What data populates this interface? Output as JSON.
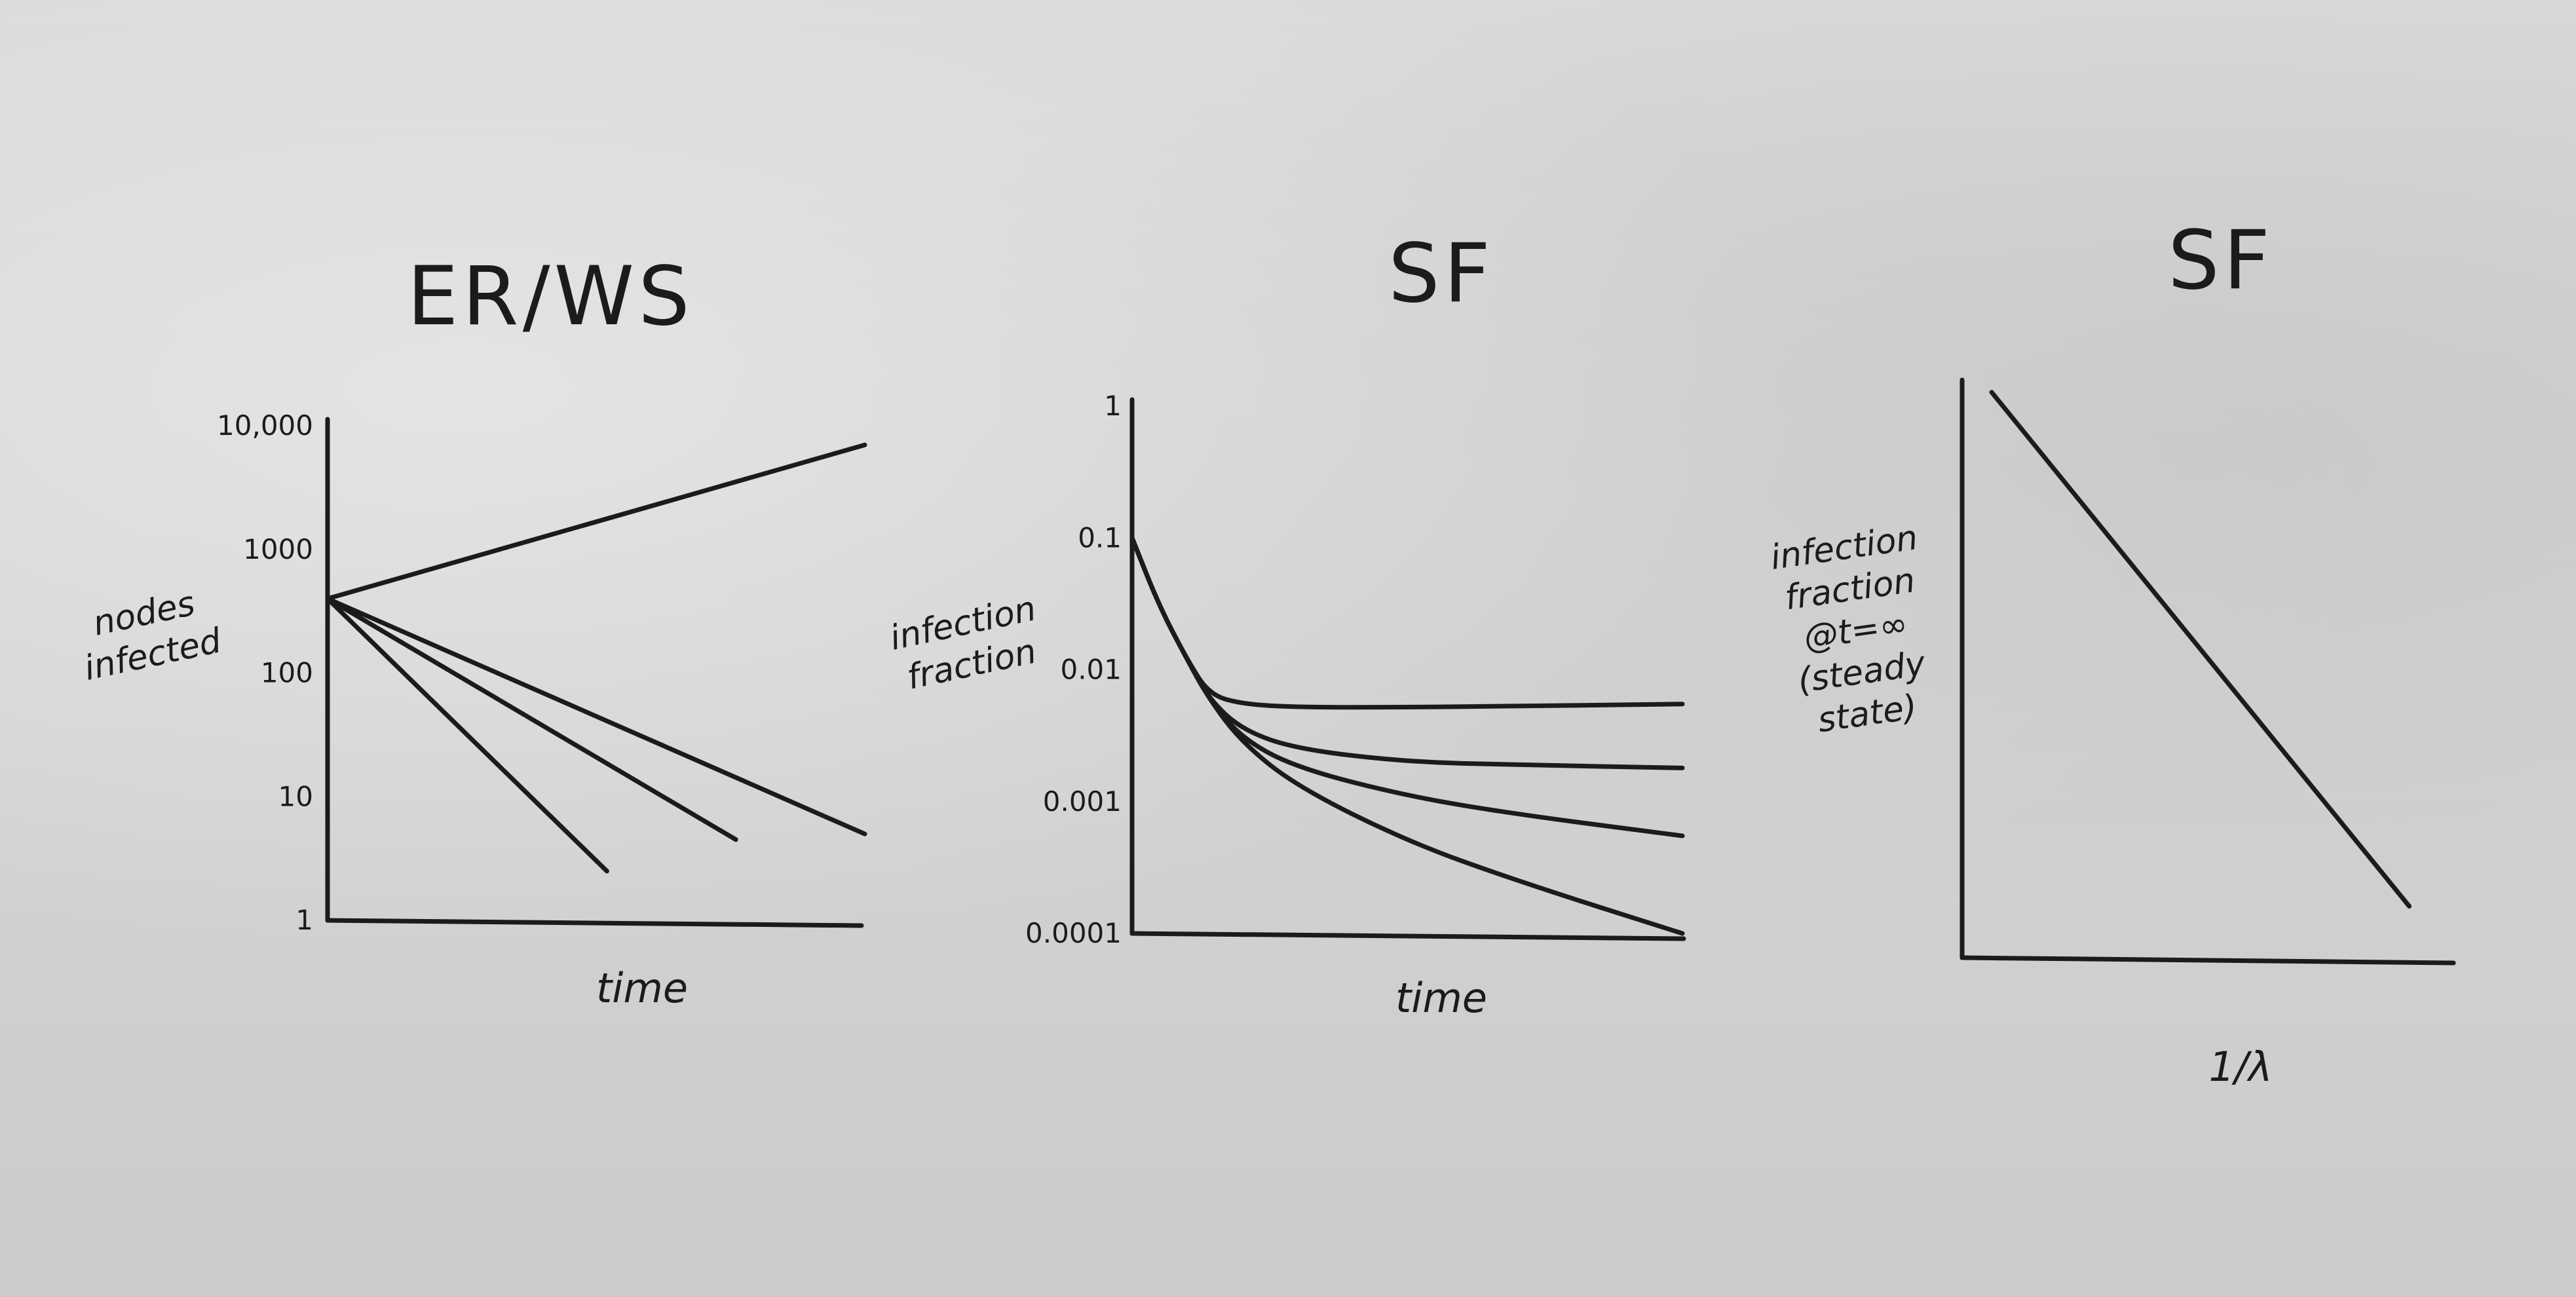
{
  "chart_data": [
    {
      "type": "line",
      "title": "ER/WS",
      "xlabel": "time",
      "ylabel": [
        "nodes",
        "infected"
      ],
      "yscale": "log",
      "y_ticks": [
        "10,000",
        "1000",
        "100",
        "10",
        "1"
      ],
      "y_tick_values": [
        10000,
        1000,
        100,
        10,
        1
      ],
      "ylim": [
        1,
        10000
      ],
      "xlim": [
        0,
        10
      ],
      "series": [
        {
          "x": [
            0,
            10
          ],
          "y": [
            400,
            7000
          ]
        },
        {
          "x": [
            0,
            10
          ],
          "y": [
            400,
            5
          ]
        },
        {
          "x": [
            0,
            7.6
          ],
          "y": [
            400,
            4.5
          ]
        },
        {
          "x": [
            0,
            5.2
          ],
          "y": [
            400,
            2.5
          ]
        }
      ]
    },
    {
      "type": "line",
      "title": "SF",
      "xlabel": "time",
      "ylabel": [
        "infection",
        "fraction"
      ],
      "yscale": "log",
      "y_ticks": [
        "1",
        "0.1",
        "0.01",
        "0.001",
        "0.0001"
      ],
      "y_tick_values": [
        1,
        0.1,
        0.01,
        0.001,
        0.0001
      ],
      "ylim": [
        0.0001,
        1
      ],
      "xlim": [
        0,
        10
      ],
      "series": [
        {
          "x": [
            0,
            0.5,
            1,
            1.4,
            2,
            3,
            5,
            7,
            10
          ],
          "y": [
            0.1,
            0.03,
            0.012,
            0.0065,
            0.0055,
            0.0052,
            0.0052,
            0.0053,
            0.0055
          ]
        },
        {
          "x": [
            0,
            0.5,
            1,
            1.4,
            2,
            3,
            5,
            7,
            10
          ],
          "y": [
            0.1,
            0.03,
            0.012,
            0.006,
            0.0035,
            0.0025,
            0.002,
            0.0019,
            0.0018
          ]
        },
        {
          "x": [
            0,
            0.5,
            1,
            1.4,
            2,
            3,
            5,
            7,
            10
          ],
          "y": [
            0.1,
            0.03,
            0.012,
            0.006,
            0.003,
            0.0018,
            0.0011,
            0.0008,
            0.00055
          ]
        },
        {
          "x": [
            0,
            0.5,
            1,
            1.4,
            2,
            3,
            5,
            7,
            10
          ],
          "y": [
            0.1,
            0.03,
            0.012,
            0.006,
            0.0028,
            0.0013,
            0.0005,
            0.00025,
            0.0001
          ]
        }
      ]
    },
    {
      "type": "line",
      "title": "SF",
      "xlabel": "1/λ",
      "ylabel": [
        "infection",
        "fraction",
        "@t=∞",
        "(steady",
        "state)"
      ],
      "xlim": [
        0,
        10
      ],
      "ylim": [
        0,
        10
      ],
      "series": [
        {
          "x": [
            0.6,
            9.1
          ],
          "y": [
            9.9,
            0.9
          ]
        }
      ]
    }
  ],
  "colors": {
    "board": "#d9d9d7",
    "ink": "#1b1b1b"
  }
}
